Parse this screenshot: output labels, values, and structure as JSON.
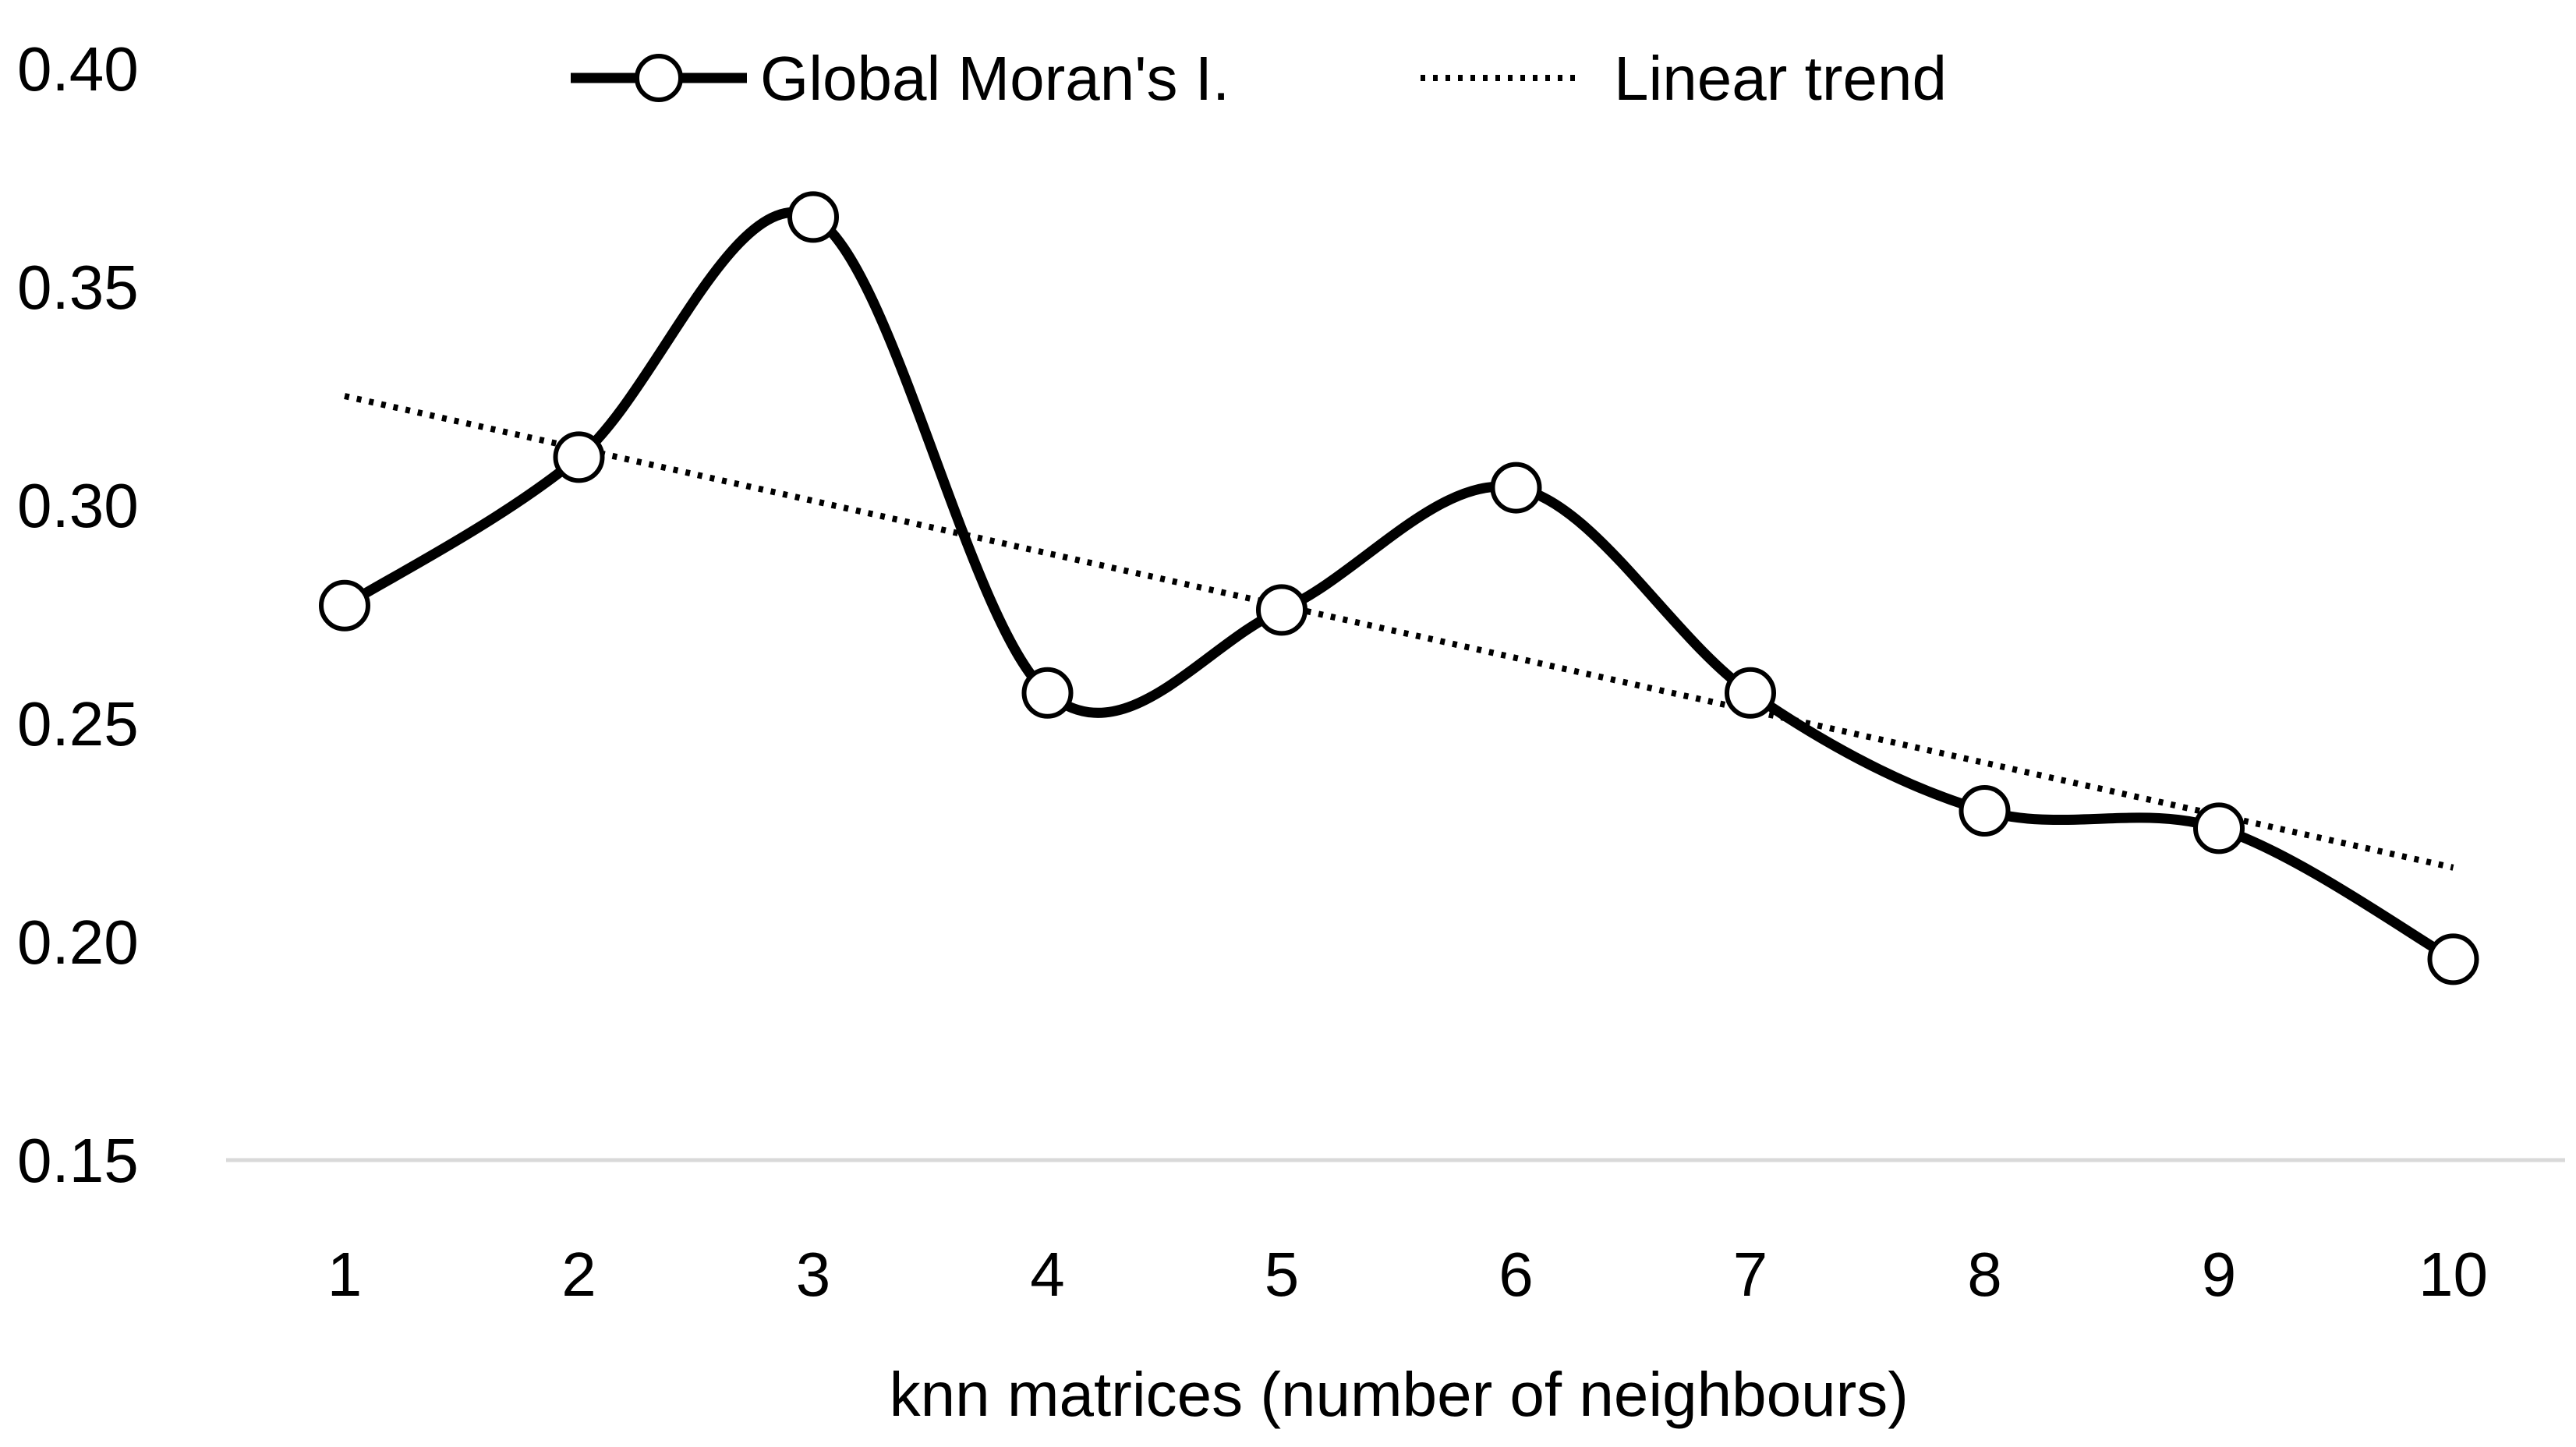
{
  "chart_data": {
    "type": "line",
    "title": "",
    "xlabel": "knn matrices (number of neighbours)",
    "ylabel": "",
    "categories": [
      "1",
      "2",
      "3",
      "4",
      "5",
      "6",
      "7",
      "8",
      "9",
      "10"
    ],
    "yticks": [
      "0.15",
      "0.20",
      "0.25",
      "0.30",
      "0.35",
      "0.40"
    ],
    "ylim": [
      0.15,
      0.4
    ],
    "grid": false,
    "legend_position": "top-center",
    "series": [
      {
        "name": "Global Moran's I.",
        "style": "smoothed solid line with open circle markers",
        "color": "#000000",
        "values": [
          0.277,
          0.311,
          0.366,
          0.257,
          0.276,
          0.304,
          0.257,
          0.23,
          0.226,
          0.196
        ]
      },
      {
        "name": "Linear trend",
        "style": "dotted line",
        "color": "#000000",
        "values": [
          0.325,
          0.313,
          0.301,
          0.289,
          0.277,
          0.265,
          0.253,
          0.241,
          0.229,
          0.217
        ]
      }
    ]
  }
}
